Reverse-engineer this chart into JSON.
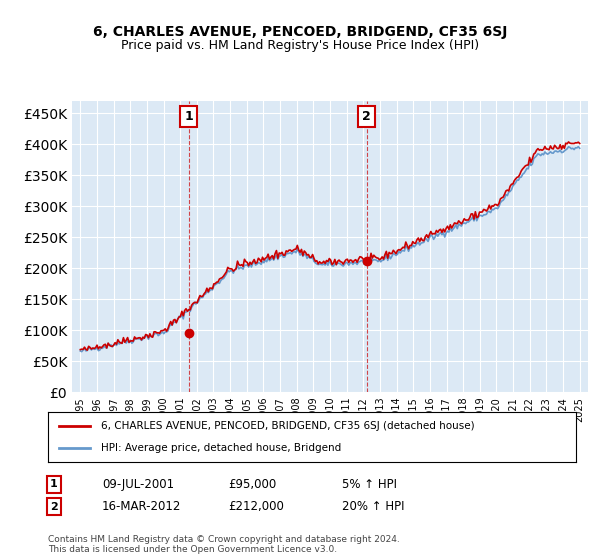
{
  "title": "6, CHARLES AVENUE, PENCOED, BRIDGEND, CF35 6SJ",
  "subtitle": "Price paid vs. HM Land Registry's House Price Index (HPI)",
  "ylim": [
    0,
    470000
  ],
  "yticks": [
    0,
    50000,
    100000,
    150000,
    200000,
    250000,
    300000,
    350000,
    400000,
    450000
  ],
  "ylabel_format": "£{0}K",
  "red_color": "#cc0000",
  "blue_color": "#6699cc",
  "dashed_red": "#cc0000",
  "annotation1": {
    "label": "1",
    "date_idx": 2001.5,
    "price": 95000,
    "x_text": "09-JUL-2001",
    "price_text": "£95,000",
    "pct_text": "5% ↑ HPI"
  },
  "annotation2": {
    "label": "2",
    "date_idx": 2012.2,
    "price": 212000,
    "x_text": "16-MAR-2012",
    "price_text": "£212,000",
    "pct_text": "20% ↑ HPI"
  },
  "legend_line1": "6, CHARLES AVENUE, PENCOED, BRIDGEND, CF35 6SJ (detached house)",
  "legend_line2": "HPI: Average price, detached house, Bridgend",
  "footer": "Contains HM Land Registry data © Crown copyright and database right 2024.\nThis data is licensed under the Open Government Licence v3.0.",
  "background_color": "#ffffff",
  "plot_bg_color": "#dce9f5"
}
